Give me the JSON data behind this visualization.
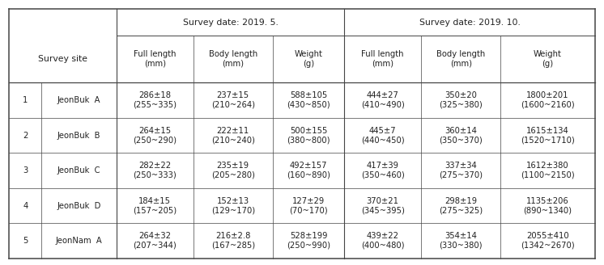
{
  "col_headers_top": [
    "Survey date: 2019. 5.",
    "Survey date: 2019. 10."
  ],
  "col_headers_sub": [
    "Full length\n(mm)",
    "Body length\n(mm)",
    "Weight\n(g)",
    "Full length\n(mm)",
    "Body length\n(mm)",
    "Weight\n(g)"
  ],
  "row_labels_num": [
    "1",
    "2",
    "3",
    "4",
    "5"
  ],
  "row_labels_site": [
    "JeonBuk  A",
    "JeonBuk  B",
    "JeonBuk  C",
    "JeonBuk  D",
    "JeonNam  A"
  ],
  "cell_data": [
    [
      "286±18\n(255~335)",
      "237±15\n(210~264)",
      "588±105\n(430~850)",
      "444±27\n(410~490)",
      "350±20\n(325~380)",
      "1800±201\n(1600~2160)"
    ],
    [
      "264±15\n(250~290)",
      "222±11\n(210~240)",
      "500±155\n(380~800)",
      "445±7\n(440~450)",
      "360±14\n(350~370)",
      "1615±134\n(1520~1710)"
    ],
    [
      "282±22\n(250~333)",
      "235±19\n(205~280)",
      "492±157\n(160~890)",
      "417±39\n(350~460)",
      "337±34\n(275~370)",
      "1612±380\n(1100~2150)"
    ],
    [
      "184±15\n(157~205)",
      "152±13\n(129~170)",
      "127±29\n(70~170)",
      "370±21\n(345~395)",
      "298±19\n(275~325)",
      "1135±206\n(890~1340)"
    ],
    [
      "264±32\n(207~344)",
      "216±2.8\n(167~285)",
      "528±199\n(250~990)",
      "439±22\n(400~480)",
      "354±14\n(330~380)",
      "2055±410\n(1342~2670)"
    ]
  ],
  "bg_color": "#ffffff",
  "line_color": "#444444",
  "text_color": "#222222",
  "font_size": 7.2,
  "header_font_size": 7.8
}
